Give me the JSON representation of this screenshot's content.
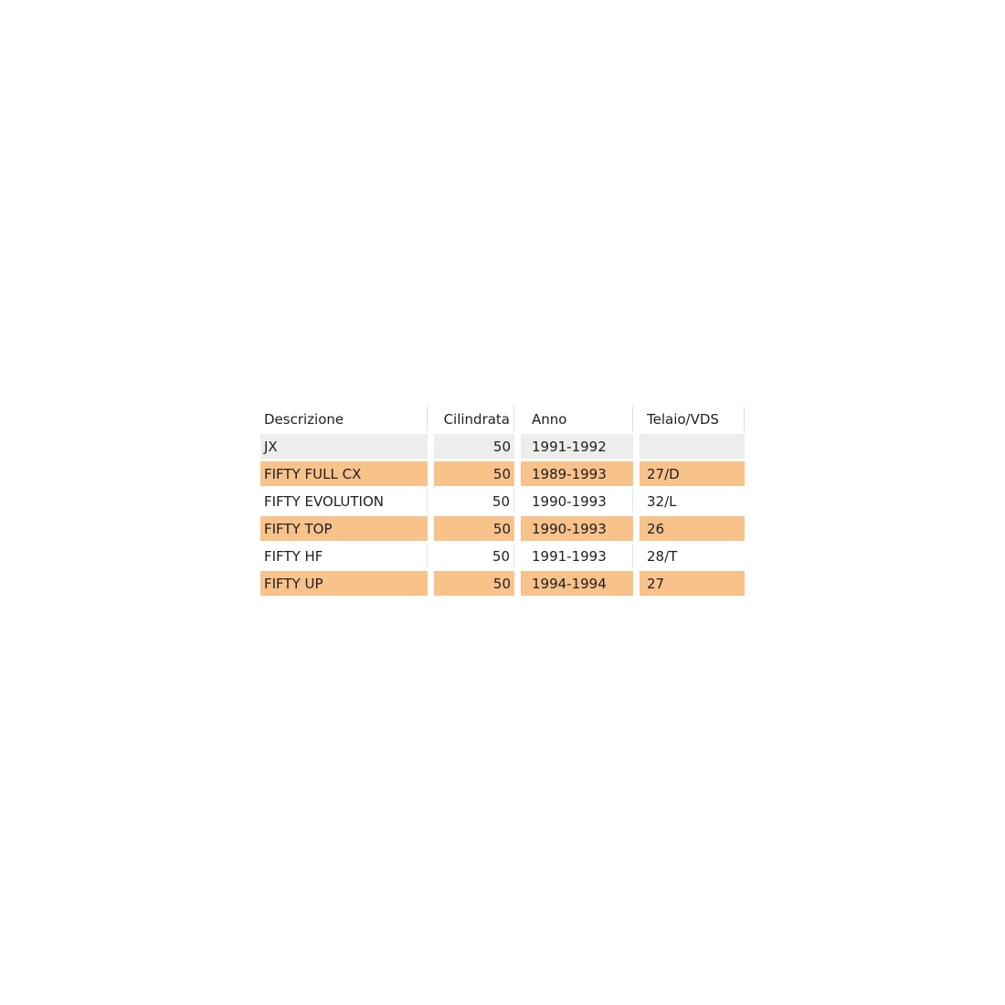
{
  "table": {
    "columns": [
      {
        "key": "descrizione",
        "label": "Descrizione"
      },
      {
        "key": "cilindrata",
        "label": "Cilindrata"
      },
      {
        "key": "anno",
        "label": "Anno"
      },
      {
        "key": "telaio_vds",
        "label": "Telaio/VDS"
      }
    ],
    "rows": [
      {
        "descrizione": "JX",
        "cilindrata": "50",
        "anno": "1991-1992",
        "telaio_vds": "",
        "bg": "gray"
      },
      {
        "descrizione": "FIFTY FULL CX",
        "cilindrata": "50",
        "anno": "1989-1993",
        "telaio_vds": "27/D",
        "bg": "orange"
      },
      {
        "descrizione": "FIFTY EVOLUTION",
        "cilindrata": "50",
        "anno": "1990-1993",
        "telaio_vds": "32/L",
        "bg": "white"
      },
      {
        "descrizione": "FIFTY TOP",
        "cilindrata": "50",
        "anno": "1990-1993",
        "telaio_vds": "26",
        "bg": "orange"
      },
      {
        "descrizione": "FIFTY HF",
        "cilindrata": "50",
        "anno": "1991-1993",
        "telaio_vds": "28/T",
        "bg": "white"
      },
      {
        "descrizione": "FIFTY UP",
        "cilindrata": "50",
        "anno": "1994-1994",
        "telaio_vds": "27",
        "bg": "orange"
      }
    ],
    "colors": {
      "row_orange": "#F8C28B",
      "row_gray": "#EDEDEC",
      "row_white": "#FFFFFF",
      "text": "#1F1F1F",
      "header_divider": "#DCDCDC"
    }
  }
}
